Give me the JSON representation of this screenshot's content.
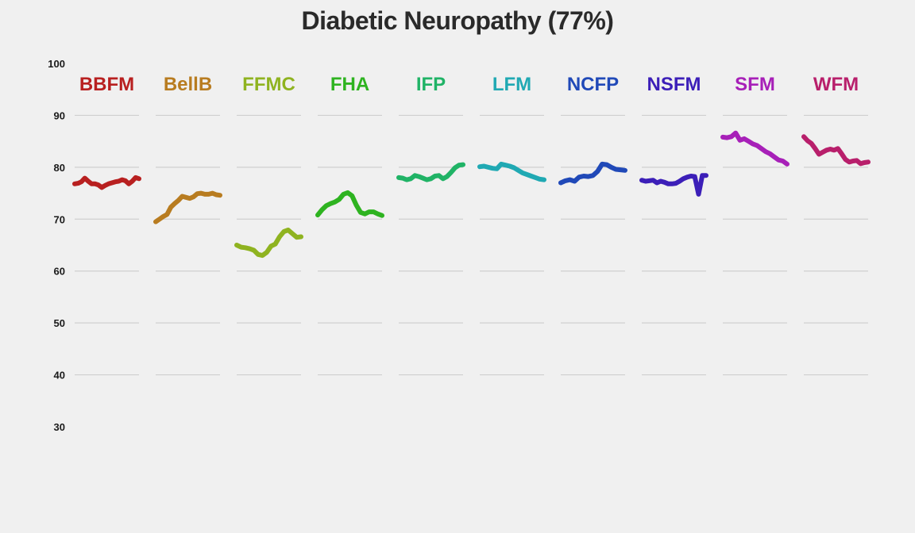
{
  "chart_data": {
    "type": "line",
    "title": "Diabetic Neuropathy (77%)",
    "xlabel": "",
    "ylabel": "",
    "ylim": [
      30,
      100
    ],
    "yticks": [
      30,
      40,
      50,
      60,
      70,
      80,
      90,
      100
    ],
    "grid": true,
    "series": [
      {
        "name": "BBFM",
        "color": "#b82020",
        "values": [
          76.8,
          76.9,
          77.2,
          77.9,
          77.3,
          76.8,
          76.8,
          76.6,
          76.1,
          76.5,
          76.8,
          77.0,
          77.2,
          77.3,
          77.6,
          77.4,
          76.8,
          77.3,
          78.0,
          77.8
        ]
      },
      {
        "name": "BellB",
        "color": "#b87c20",
        "values": [
          69.5,
          70.0,
          70.5,
          70.9,
          72.3,
          73.0,
          73.6,
          74.4,
          74.2,
          74.0,
          74.3,
          74.9,
          75.0,
          74.8,
          74.8,
          75.0,
          74.7,
          74.6
        ]
      },
      {
        "name": "FFMC",
        "color": "#8fb320",
        "values": [
          65.0,
          64.6,
          64.5,
          64.3,
          64.0,
          63.2,
          63.0,
          63.6,
          64.8,
          65.2,
          66.6,
          67.6,
          67.9,
          67.2,
          66.5,
          66.6
        ]
      },
      {
        "name": "FHA",
        "color": "#2eb320",
        "values": [
          70.8,
          71.8,
          72.6,
          73.0,
          73.3,
          73.8,
          74.8,
          75.1,
          74.5,
          72.7,
          71.3,
          71.0,
          71.4,
          71.4,
          71.0,
          70.7
        ]
      },
      {
        "name": "IFP",
        "color": "#20b366",
        "values": [
          78.0,
          77.9,
          77.6,
          77.8,
          78.4,
          78.2,
          77.9,
          77.6,
          77.8,
          78.3,
          78.4,
          77.8,
          78.2,
          79.0,
          79.9,
          80.4,
          80.5
        ]
      },
      {
        "name": "LFM",
        "color": "#20a9b3",
        "values": [
          80.1,
          80.2,
          80.0,
          79.8,
          79.7,
          80.6,
          80.4,
          80.2,
          79.9,
          79.4,
          78.9,
          78.6,
          78.3,
          78.0,
          77.7,
          77.6
        ]
      },
      {
        "name": "NCFP",
        "color": "#2049b8",
        "values": [
          77.0,
          77.4,
          77.6,
          77.3,
          78.1,
          78.3,
          78.2,
          78.4,
          79.2,
          80.6,
          80.5,
          80.0,
          79.6,
          79.5,
          79.4
        ]
      },
      {
        "name": "NSFM",
        "color": "#3c1fb8",
        "values": [
          77.5,
          77.3,
          77.4,
          77.5,
          77.0,
          77.3,
          77.1,
          76.8,
          76.8,
          76.9,
          77.3,
          77.8,
          78.1,
          78.3,
          78.2,
          74.8,
          78.4,
          78.4
        ]
      },
      {
        "name": "SFM",
        "color": "#a720b8",
        "values": [
          85.8,
          85.7,
          85.9,
          86.6,
          85.2,
          85.5,
          85.0,
          84.5,
          84.2,
          83.6,
          83.0,
          82.6,
          82.0,
          81.4,
          81.2,
          80.6
        ]
      },
      {
        "name": "WFM",
        "color": "#b81f6b",
        "values": [
          85.9,
          85.1,
          84.6,
          83.6,
          82.5,
          82.9,
          83.3,
          83.5,
          83.3,
          83.6,
          82.6,
          81.5,
          81.0,
          81.2,
          81.3,
          80.7,
          80.9,
          81.0
        ]
      }
    ]
  }
}
